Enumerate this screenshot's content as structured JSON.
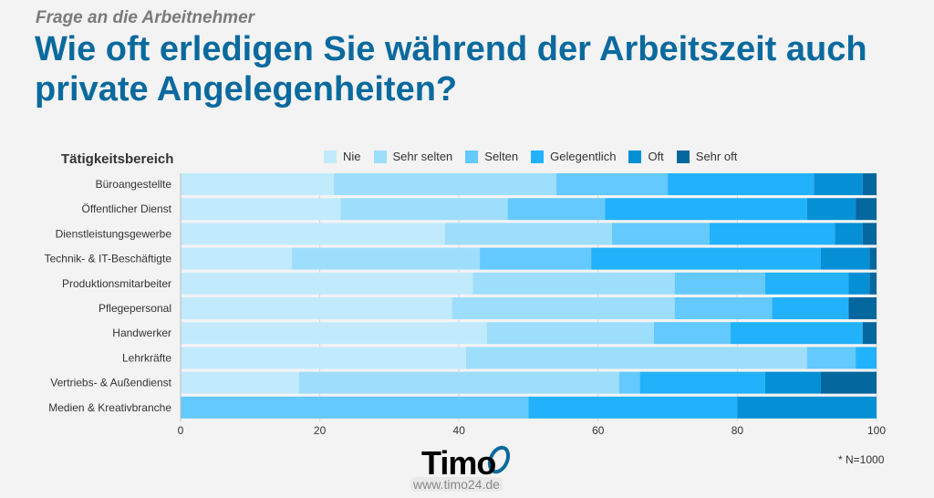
{
  "subtitle": "Frage an die Arbeitnehmer",
  "title": "Wie oft erledigen Sie während der Arbeitszeit auch private Angelegenheiten?",
  "note": "* N=1000",
  "logo": {
    "text": "Timo",
    "url": "www.timo24.de"
  },
  "chart_data": {
    "type": "bar",
    "orientation": "horizontal",
    "stacked": true,
    "category_header": "Tätigkeitsbereich",
    "categories": [
      "Büroangestellte",
      "Öffentlicher Dienst",
      "Dienstleistungsgewerbe",
      "Technik- & IT-Beschäftigte",
      "Produktionsmitarbeiter",
      "Pflegepersonal",
      "Handwerker",
      "Lehrkräfte",
      "Vertriebs- & Außendienst",
      "Medien & Kreativbranche"
    ],
    "series": [
      {
        "name": "Nie",
        "color": "#c2eafd",
        "values": [
          22,
          23,
          38,
          16,
          42,
          39,
          44,
          41,
          17,
          0
        ]
      },
      {
        "name": "Sehr selten",
        "color": "#9edefd",
        "values": [
          32,
          24,
          24,
          27,
          29,
          32,
          24,
          49,
          46,
          0
        ]
      },
      {
        "name": "Selten",
        "color": "#64c9fd",
        "values": [
          16,
          14,
          14,
          16,
          13,
          14,
          11,
          7,
          3,
          50
        ]
      },
      {
        "name": "Gelegentlich",
        "color": "#22b2fc",
        "values": [
          21,
          29,
          18,
          33,
          12,
          11,
          19,
          3,
          18,
          30
        ]
      },
      {
        "name": "Oft",
        "color": "#0590d6",
        "values": [
          7,
          7,
          4,
          7,
          3,
          0,
          0,
          0,
          8,
          20
        ]
      },
      {
        "name": "Sehr oft",
        "color": "#04679e",
        "values": [
          2,
          3,
          2,
          1,
          1,
          4,
          2,
          0,
          8,
          0
        ]
      }
    ],
    "xlim": [
      0,
      100
    ],
    "xticks": [
      0,
      20,
      40,
      60,
      80,
      100
    ],
    "grid": true,
    "legend": "top"
  }
}
